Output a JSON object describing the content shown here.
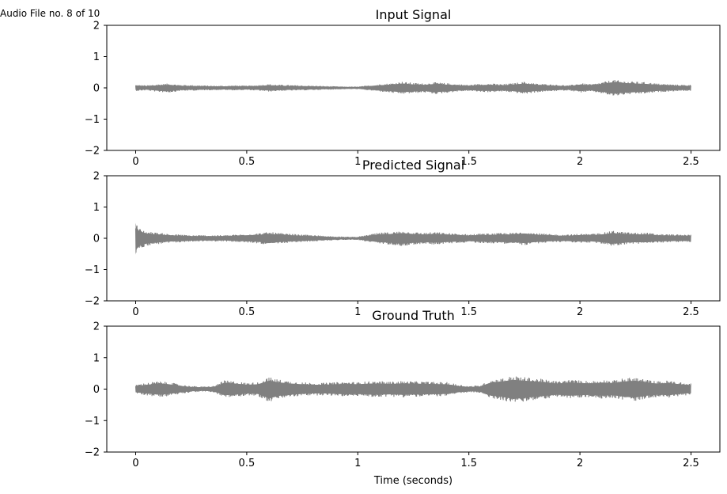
{
  "figure": {
    "suptitle": "Audio File no. 8 of 10"
  },
  "chart_data": [
    {
      "type": "line",
      "title": "Input Signal",
      "xlabel": "",
      "ylabel": "",
      "xlim": [
        -0.13,
        2.63
      ],
      "ylim": [
        -2,
        2
      ],
      "x_ticks": [
        0,
        0.5,
        1,
        1.5,
        2,
        2.5
      ],
      "x_tick_labels": [
        "0",
        "0.5",
        "1",
        "1.5",
        "2",
        "2.5"
      ],
      "y_ticks": [
        2,
        1,
        0,
        -1,
        -2
      ],
      "y_tick_labels": [
        "2",
        "1",
        "0",
        "−1",
        "−2"
      ],
      "line_color": "#808080",
      "grid": false,
      "series": [
        {
          "x": [
            0,
            0.05,
            0.1,
            0.15,
            0.2,
            0.25,
            0.3,
            0.35,
            0.4,
            0.45,
            0.5,
            0.55,
            0.6,
            0.65,
            0.7,
            0.75,
            0.8,
            0.85,
            0.9,
            0.95,
            1.0,
            1.05,
            1.1,
            1.15,
            1.2,
            1.25,
            1.3,
            1.35,
            1.4,
            1.45,
            1.5,
            1.55,
            1.6,
            1.65,
            1.7,
            1.75,
            1.8,
            1.85,
            1.9,
            1.95,
            2.0,
            2.05,
            2.1,
            2.15,
            2.2,
            2.25,
            2.3,
            2.35,
            2.4,
            2.45,
            2.5
          ],
          "upper": [
            0.1,
            0.08,
            0.12,
            0.14,
            0.1,
            0.09,
            0.08,
            0.07,
            0.07,
            0.08,
            0.07,
            0.09,
            0.12,
            0.1,
            0.09,
            0.08,
            0.07,
            0.06,
            0.05,
            0.04,
            0.04,
            0.08,
            0.12,
            0.15,
            0.2,
            0.16,
            0.14,
            0.18,
            0.15,
            0.12,
            0.1,
            0.13,
            0.14,
            0.12,
            0.15,
            0.2,
            0.14,
            0.12,
            0.1,
            0.08,
            0.15,
            0.12,
            0.18,
            0.26,
            0.22,
            0.2,
            0.18,
            0.14,
            0.12,
            0.1,
            0.1
          ],
          "lower": [
            -0.1,
            -0.08,
            -0.13,
            -0.15,
            -0.1,
            -0.09,
            -0.08,
            -0.07,
            -0.07,
            -0.08,
            -0.07,
            -0.09,
            -0.12,
            -0.1,
            -0.09,
            -0.08,
            -0.07,
            -0.06,
            -0.05,
            -0.04,
            -0.04,
            -0.08,
            -0.12,
            -0.16,
            -0.2,
            -0.17,
            -0.15,
            -0.2,
            -0.16,
            -0.12,
            -0.1,
            -0.13,
            -0.14,
            -0.12,
            -0.15,
            -0.2,
            -0.15,
            -0.12,
            -0.1,
            -0.08,
            -0.15,
            -0.12,
            -0.18,
            -0.27,
            -0.22,
            -0.2,
            -0.18,
            -0.14,
            -0.12,
            -0.1,
            -0.1
          ]
        }
      ]
    },
    {
      "type": "line",
      "title": "Predicted Signal",
      "xlabel": "",
      "ylabel": "",
      "xlim": [
        -0.13,
        2.63
      ],
      "ylim": [
        -2,
        2
      ],
      "x_ticks": [
        0,
        0.5,
        1,
        1.5,
        2,
        2.5
      ],
      "x_tick_labels": [
        "0",
        "0.5",
        "1",
        "1.5",
        "2",
        "2.5"
      ],
      "y_ticks": [
        2,
        1,
        0,
        -1,
        -2
      ],
      "y_tick_labels": [
        "2",
        "1",
        "0",
        "−1",
        "−2"
      ],
      "line_color": "#808080",
      "grid": false,
      "series": [
        {
          "x": [
            0,
            0.005,
            0.02,
            0.05,
            0.1,
            0.15,
            0.2,
            0.25,
            0.3,
            0.35,
            0.4,
            0.45,
            0.5,
            0.55,
            0.6,
            0.65,
            0.7,
            0.75,
            0.8,
            0.85,
            0.9,
            0.95,
            1.0,
            1.05,
            1.1,
            1.15,
            1.2,
            1.25,
            1.3,
            1.35,
            1.4,
            1.45,
            1.5,
            1.55,
            1.6,
            1.65,
            1.7,
            1.75,
            1.8,
            1.85,
            1.9,
            1.95,
            2.0,
            2.05,
            2.1,
            2.15,
            2.2,
            2.25,
            2.3,
            2.35,
            2.4,
            2.45,
            2.5
          ],
          "upper": [
            0.7,
            0.45,
            0.3,
            0.22,
            0.18,
            0.14,
            0.12,
            0.1,
            0.1,
            0.1,
            0.1,
            0.12,
            0.14,
            0.16,
            0.2,
            0.17,
            0.14,
            0.12,
            0.1,
            0.08,
            0.06,
            0.05,
            0.05,
            0.12,
            0.18,
            0.2,
            0.24,
            0.2,
            0.18,
            0.2,
            0.17,
            0.15,
            0.13,
            0.15,
            0.16,
            0.17,
            0.18,
            0.22,
            0.17,
            0.14,
            0.12,
            0.12,
            0.15,
            0.14,
            0.18,
            0.24,
            0.2,
            0.18,
            0.18,
            0.14,
            0.13,
            0.12,
            0.12
          ],
          "lower": [
            -0.75,
            -0.48,
            -0.32,
            -0.24,
            -0.19,
            -0.15,
            -0.13,
            -0.11,
            -0.1,
            -0.1,
            -0.1,
            -0.12,
            -0.14,
            -0.16,
            -0.22,
            -0.17,
            -0.14,
            -0.12,
            -0.1,
            -0.08,
            -0.06,
            -0.05,
            -0.05,
            -0.12,
            -0.18,
            -0.2,
            -0.25,
            -0.21,
            -0.18,
            -0.2,
            -0.17,
            -0.15,
            -0.13,
            -0.15,
            -0.16,
            -0.17,
            -0.18,
            -0.22,
            -0.17,
            -0.14,
            -0.12,
            -0.12,
            -0.15,
            -0.14,
            -0.18,
            -0.25,
            -0.2,
            -0.18,
            -0.18,
            -0.14,
            -0.13,
            -0.12,
            -0.12
          ]
        }
      ]
    },
    {
      "type": "line",
      "title": "Ground Truth",
      "xlabel": "Time (seconds)",
      "ylabel": "",
      "xlim": [
        -0.13,
        2.63
      ],
      "ylim": [
        -2,
        2
      ],
      "x_ticks": [
        0,
        0.5,
        1,
        1.5,
        2,
        2.5
      ],
      "x_tick_labels": [
        "0",
        "0.5",
        "1",
        "1.5",
        "2",
        "2.5"
      ],
      "y_ticks": [
        2,
        1,
        0,
        -1,
        -2
      ],
      "y_tick_labels": [
        "2",
        "1",
        "0",
        "−1",
        "−2"
      ],
      "line_color": "#808080",
      "grid": false,
      "series": [
        {
          "x": [
            0,
            0.05,
            0.1,
            0.15,
            0.2,
            0.25,
            0.3,
            0.35,
            0.4,
            0.45,
            0.5,
            0.55,
            0.6,
            0.65,
            0.7,
            0.75,
            0.8,
            0.85,
            0.9,
            0.95,
            1.0,
            1.05,
            1.1,
            1.15,
            1.2,
            1.25,
            1.3,
            1.35,
            1.4,
            1.45,
            1.5,
            1.55,
            1.6,
            1.65,
            1.7,
            1.75,
            1.8,
            1.85,
            1.9,
            1.95,
            2.0,
            2.05,
            2.1,
            2.15,
            2.2,
            2.25,
            2.3,
            2.35,
            2.4,
            2.45,
            2.5
          ],
          "upper": [
            0.15,
            0.2,
            0.25,
            0.22,
            0.15,
            0.1,
            0.08,
            0.1,
            0.28,
            0.25,
            0.2,
            0.22,
            0.38,
            0.3,
            0.25,
            0.22,
            0.2,
            0.2,
            0.22,
            0.24,
            0.22,
            0.25,
            0.25,
            0.24,
            0.26,
            0.25,
            0.24,
            0.23,
            0.22,
            0.15,
            0.1,
            0.12,
            0.3,
            0.35,
            0.42,
            0.38,
            0.35,
            0.3,
            0.25,
            0.3,
            0.28,
            0.26,
            0.3,
            0.28,
            0.35,
            0.38,
            0.3,
            0.25,
            0.28,
            0.22,
            0.18
          ],
          "lower": [
            -0.15,
            -0.2,
            -0.25,
            -0.22,
            -0.15,
            -0.1,
            -0.08,
            -0.1,
            -0.28,
            -0.25,
            -0.2,
            -0.22,
            -0.42,
            -0.3,
            -0.25,
            -0.22,
            -0.2,
            -0.2,
            -0.22,
            -0.24,
            -0.22,
            -0.25,
            -0.25,
            -0.24,
            -0.26,
            -0.25,
            -0.24,
            -0.23,
            -0.22,
            -0.15,
            -0.1,
            -0.12,
            -0.3,
            -0.35,
            -0.45,
            -0.4,
            -0.35,
            -0.3,
            -0.25,
            -0.3,
            -0.28,
            -0.26,
            -0.3,
            -0.28,
            -0.35,
            -0.38,
            -0.3,
            -0.25,
            -0.28,
            -0.22,
            -0.18
          ]
        }
      ]
    }
  ]
}
